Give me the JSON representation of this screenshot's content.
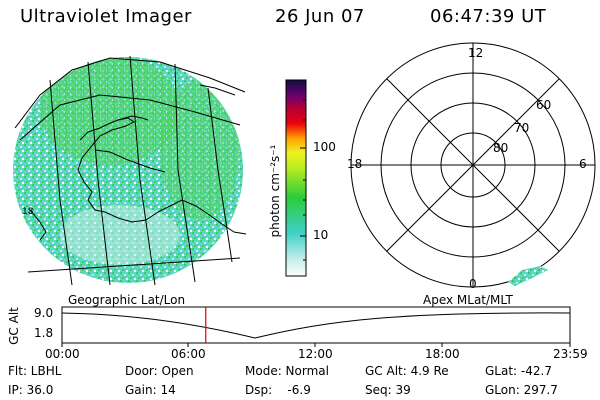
{
  "header": {
    "title": "Ultraviolet Imager",
    "date": "26 Jun 07",
    "time": "06:47:39 UT"
  },
  "colorbar": {
    "unit_label": "photon cm⁻²s⁻¹",
    "ticks": [
      "100",
      "10"
    ]
  },
  "polar_plot": {
    "hour_labels": [
      "12",
      "18",
      "6",
      "0"
    ],
    "lat_labels": [
      "60",
      "70",
      "80"
    ]
  },
  "image_panel": {
    "coastline_tag": "18"
  },
  "orbit_panel": {
    "left_title": "Geographic Lat/Lon",
    "right_title": "Apex MLat/MLT",
    "y_axis_label": "GC Alt",
    "y_ticks": [
      "9.0",
      "1.8"
    ],
    "x_ticks": [
      "00:00",
      "06:00",
      "12:00",
      "18:00",
      "23:59"
    ],
    "current_time_fraction": 0.283
  },
  "status": {
    "flt": "Flt: LBHL",
    "ip": "IP: 36.0",
    "door": "Door: Open",
    "gain": "Gain: 14",
    "mode": "Mode: Normal",
    "dsp": "Dsp:    -6.9",
    "gcalt": "GC Alt: 4.9 Re",
    "seq": "Seq: 39",
    "glat": "GLat: -42.7",
    "glon": "GLon: 297.7"
  },
  "colors": {
    "disk_teal": "#4fd8c0",
    "disk_green": "#3ccc4a",
    "disk_pale": "#bfece6",
    "marker": "#dd0000"
  }
}
